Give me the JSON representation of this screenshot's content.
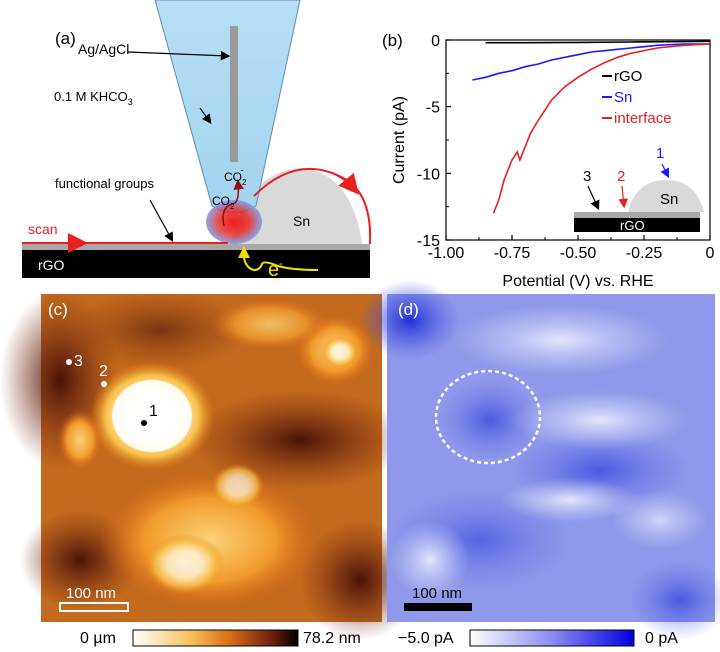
{
  "panel_a": {
    "label": "(a)",
    "ref_electrode": "Ag/AgCl",
    "electrolyte": "0.1 M KHCO",
    "electrolyte_sub": "3",
    "product": "CO",
    "product_sub": "2",
    "product_sup": "-",
    "reactant": "CO",
    "reactant_sub": "2",
    "sn_label": "Sn",
    "functional_groups": "functional groups",
    "scan_label": "scan",
    "substrate_label": "rGO",
    "electron": "e",
    "electron_sup": "-"
  },
  "panel_b": {
    "label": "(b)",
    "inset": {
      "marker_1": "1",
      "marker_2": "2",
      "marker_3": "3",
      "sn_label": "Sn",
      "substrate_label": "rGO"
    },
    "colors": {
      "rGO": "#000000",
      "Sn": "#1a1aff",
      "interface": "#e8201e"
    }
  },
  "chart_data": {
    "type": "line",
    "xlabel": "Potential (V) vs. RHE",
    "ylabel": "Current (pA)",
    "xlim": [
      -1.0,
      0.0
    ],
    "ylim": [
      -15,
      0
    ],
    "xticks": [
      "-1.00",
      "-0.75",
      "-0.50",
      "-0.25",
      "0"
    ],
    "yticks": [
      "0",
      "-5",
      "-10",
      "-15"
    ],
    "legend_position": "top-right",
    "series": [
      {
        "name": "rGO",
        "x": [
          -0.85,
          -0.7,
          -0.5,
          -0.3,
          -0.1,
          0.0
        ],
        "y": [
          -0.2,
          -0.2,
          -0.18,
          -0.15,
          -0.12,
          -0.1
        ]
      },
      {
        "name": "Sn",
        "x": [
          -0.9,
          -0.85,
          -0.8,
          -0.75,
          -0.7,
          -0.65,
          -0.6,
          -0.55,
          -0.5,
          -0.45,
          -0.4,
          -0.35,
          -0.3,
          -0.25,
          -0.2,
          -0.1,
          0.0
        ],
        "y": [
          -3.0,
          -2.8,
          -2.5,
          -2.3,
          -2.0,
          -1.8,
          -1.5,
          -1.3,
          -1.1,
          -0.9,
          -0.8,
          -0.7,
          -0.6,
          -0.5,
          -0.4,
          -0.3,
          -0.3
        ]
      },
      {
        "name": "interface",
        "x": [
          -0.82,
          -0.8,
          -0.78,
          -0.75,
          -0.73,
          -0.72,
          -0.7,
          -0.68,
          -0.65,
          -0.6,
          -0.55,
          -0.5,
          -0.45,
          -0.4,
          -0.35,
          -0.3,
          -0.2,
          -0.1,
          0.0
        ],
        "y": [
          -13.0,
          -12.0,
          -10.5,
          -9.0,
          -8.4,
          -9.0,
          -8.0,
          -7.0,
          -6.0,
          -4.5,
          -3.5,
          -2.8,
          -2.2,
          -1.7,
          -1.3,
          -1.0,
          -0.6,
          -0.4,
          -0.3
        ]
      }
    ]
  },
  "panel_c": {
    "label": "(c)",
    "points": [
      "1",
      "2",
      "3"
    ],
    "scalebar": "100 nm",
    "colorbar_min": "0 µm",
    "colorbar_max": "78.2 nm"
  },
  "panel_d": {
    "label": "(d)",
    "scalebar": "100 nm",
    "colorbar_min": "−5.0 pA",
    "colorbar_max": "0 pA"
  }
}
